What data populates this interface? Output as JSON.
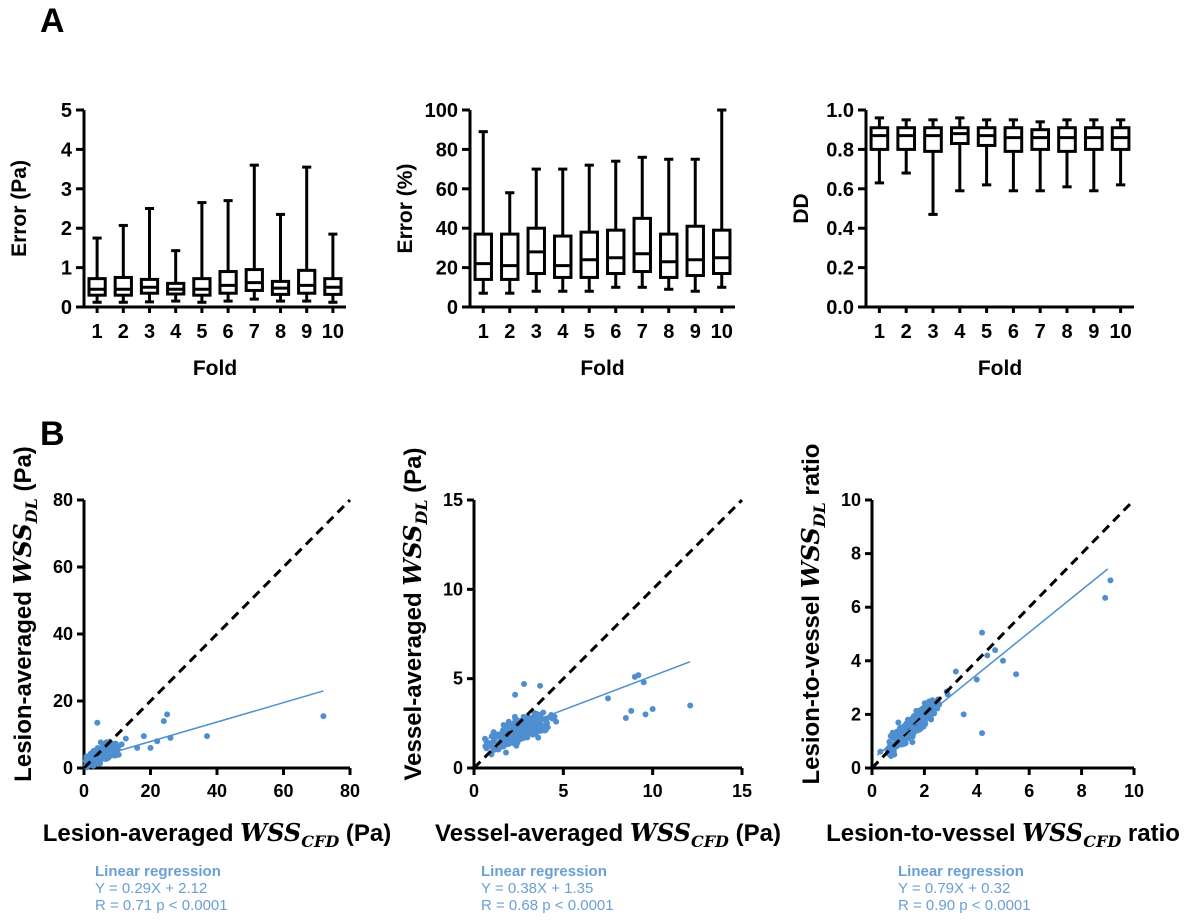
{
  "panels": {
    "a_label": "A",
    "b_label": "B"
  },
  "colors": {
    "axis": "#000000",
    "scatter": "#4f8fd0",
    "regression_text": "#6a9fd4"
  },
  "chart_data": [
    {
      "id": "a1",
      "type": "box",
      "ylabel": "Error (Pa)",
      "xlabel": "Fold",
      "categories": [
        "1",
        "2",
        "3",
        "4",
        "5",
        "6",
        "7",
        "8",
        "9",
        "10"
      ],
      "ylim": [
        0,
        5
      ],
      "yticks": [
        0,
        1,
        2,
        3,
        4,
        5
      ],
      "boxes": [
        {
          "min": 0.12,
          "q1": 0.3,
          "median": 0.45,
          "q3": 0.72,
          "max": 1.75
        },
        {
          "min": 0.12,
          "q1": 0.3,
          "median": 0.45,
          "q3": 0.75,
          "max": 2.07
        },
        {
          "min": 0.13,
          "q1": 0.35,
          "median": 0.5,
          "q3": 0.7,
          "max": 2.5
        },
        {
          "min": 0.15,
          "q1": 0.33,
          "median": 0.45,
          "q3": 0.6,
          "max": 1.43
        },
        {
          "min": 0.12,
          "q1": 0.3,
          "median": 0.45,
          "q3": 0.72,
          "max": 2.65
        },
        {
          "min": 0.15,
          "q1": 0.35,
          "median": 0.55,
          "q3": 0.9,
          "max": 2.7
        },
        {
          "min": 0.2,
          "q1": 0.42,
          "median": 0.62,
          "q3": 0.95,
          "max": 3.6
        },
        {
          "min": 0.15,
          "q1": 0.32,
          "median": 0.48,
          "q3": 0.65,
          "max": 2.35
        },
        {
          "min": 0.15,
          "q1": 0.35,
          "median": 0.55,
          "q3": 0.93,
          "max": 3.55
        },
        {
          "min": 0.12,
          "q1": 0.32,
          "median": 0.5,
          "q3": 0.72,
          "max": 1.85
        }
      ]
    },
    {
      "id": "a2",
      "type": "box",
      "ylabel": "Error (%)",
      "xlabel": "Fold",
      "categories": [
        "1",
        "2",
        "3",
        "4",
        "5",
        "6",
        "7",
        "8",
        "9",
        "10"
      ],
      "ylim": [
        0,
        100
      ],
      "yticks": [
        0,
        20,
        40,
        60,
        80,
        100
      ],
      "boxes": [
        {
          "min": 7,
          "q1": 14,
          "median": 22,
          "q3": 37,
          "max": 89
        },
        {
          "min": 7,
          "q1": 14,
          "median": 21,
          "q3": 37,
          "max": 58
        },
        {
          "min": 8,
          "q1": 17,
          "median": 28,
          "q3": 40,
          "max": 70
        },
        {
          "min": 8,
          "q1": 15,
          "median": 21,
          "q3": 36,
          "max": 70
        },
        {
          "min": 8,
          "q1": 15,
          "median": 24,
          "q3": 38,
          "max": 72
        },
        {
          "min": 10,
          "q1": 17,
          "median": 25,
          "q3": 39,
          "max": 74
        },
        {
          "min": 10,
          "q1": 18,
          "median": 27,
          "q3": 45,
          "max": 76
        },
        {
          "min": 9,
          "q1": 15,
          "median": 23,
          "q3": 37,
          "max": 75
        },
        {
          "min": 8,
          "q1": 16,
          "median": 24,
          "q3": 41,
          "max": 75
        },
        {
          "min": 10,
          "q1": 17,
          "median": 25,
          "q3": 39,
          "max": 100
        }
      ]
    },
    {
      "id": "a3",
      "type": "box",
      "ylabel": "DD",
      "xlabel": "Fold",
      "categories": [
        "1",
        "2",
        "3",
        "4",
        "5",
        "6",
        "7",
        "8",
        "9",
        "10"
      ],
      "ylim": [
        0,
        1.0
      ],
      "yticks": [
        "0.0",
        "0.2",
        "0.4",
        "0.6",
        "0.8",
        "1.0"
      ],
      "boxes": [
        {
          "min": 0.63,
          "q1": 0.8,
          "median": 0.87,
          "q3": 0.91,
          "max": 0.96
        },
        {
          "min": 0.68,
          "q1": 0.8,
          "median": 0.87,
          "q3": 0.91,
          "max": 0.95
        },
        {
          "min": 0.47,
          "q1": 0.79,
          "median": 0.87,
          "q3": 0.91,
          "max": 0.95
        },
        {
          "min": 0.59,
          "q1": 0.83,
          "median": 0.88,
          "q3": 0.91,
          "max": 0.96
        },
        {
          "min": 0.62,
          "q1": 0.82,
          "median": 0.87,
          "q3": 0.91,
          "max": 0.95
        },
        {
          "min": 0.59,
          "q1": 0.79,
          "median": 0.86,
          "q3": 0.91,
          "max": 0.95
        },
        {
          "min": 0.59,
          "q1": 0.8,
          "median": 0.86,
          "q3": 0.9,
          "max": 0.94
        },
        {
          "min": 0.61,
          "q1": 0.79,
          "median": 0.86,
          "q3": 0.91,
          "max": 0.95
        },
        {
          "min": 0.59,
          "q1": 0.8,
          "median": 0.86,
          "q3": 0.91,
          "max": 0.95
        },
        {
          "min": 0.62,
          "q1": 0.8,
          "median": 0.86,
          "q3": 0.91,
          "max": 0.95
        }
      ]
    },
    {
      "id": "b1",
      "type": "scatter",
      "ylabel_prefix": "Lesion-averaged ",
      "ylabel_var": "WSS",
      "ylabel_sub": "DL",
      "ylabel_suffix": " (Pa)",
      "xlabel_prefix": "Lesion-averaged ",
      "xlabel_var": "WSS",
      "xlabel_sub": "CFD",
      "xlabel_suffix": " (Pa)",
      "xlim": [
        0,
        80
      ],
      "ylim": [
        0,
        80
      ],
      "xticks": [
        0,
        20,
        40,
        60,
        80
      ],
      "yticks": [
        0,
        20,
        40,
        60,
        80
      ],
      "identity_line": true,
      "regression": {
        "slope": 0.29,
        "intercept": 2.12,
        "x_range": [
          1,
          72
        ]
      },
      "outliers": [
        [
          72,
          15.5
        ],
        [
          37,
          9.5
        ],
        [
          25,
          16
        ],
        [
          24,
          14
        ],
        [
          4,
          13.5
        ],
        [
          20,
          6
        ],
        [
          22,
          8
        ],
        [
          26,
          9
        ],
        [
          18,
          9.5
        ],
        [
          16,
          6
        ]
      ],
      "cluster": {
        "x_center": 5.5,
        "x_spread": 4,
        "y_at_center": 4.2,
        "y_slope": 0.45,
        "y_spread": 1.6,
        "count": 320,
        "x_min": 0.5,
        "x_max": 16
      },
      "regression_text": {
        "title": "Linear regression",
        "equation": "Y = 0.29X + 2.12",
        "stats": "R = 0.71 p < 0.0001"
      }
    },
    {
      "id": "b2",
      "type": "scatter",
      "ylabel_prefix": "Vessel-averaged ",
      "ylabel_var": "WSS",
      "ylabel_sub": "DL",
      "ylabel_suffix": " (Pa)",
      "xlabel_prefix": "Vessel-averaged ",
      "xlabel_var": "WSS",
      "xlabel_sub": "CFD",
      "xlabel_suffix": " (Pa)",
      "xlim": [
        0,
        15
      ],
      "ylim": [
        0,
        15
      ],
      "xticks": [
        0,
        5,
        10,
        15
      ],
      "yticks": [
        0,
        5,
        10,
        15
      ],
      "identity_line": true,
      "regression": {
        "slope": 0.38,
        "intercept": 1.35,
        "x_range": [
          0.8,
          12.1
        ]
      },
      "outliers": [
        [
          12.1,
          3.5
        ],
        [
          9.5,
          4.8
        ],
        [
          9.0,
          5.1
        ],
        [
          9.2,
          5.2
        ],
        [
          9.6,
          3.0
        ],
        [
          8.8,
          3.2
        ],
        [
          7.5,
          3.9
        ],
        [
          2.8,
          4.7
        ],
        [
          2.3,
          4.1
        ],
        [
          3.7,
          4.6
        ],
        [
          8.5,
          2.8
        ],
        [
          10.0,
          3.3
        ]
      ],
      "cluster": {
        "x_center": 2.6,
        "x_spread": 1.3,
        "y_at_center": 2.1,
        "y_slope": 0.4,
        "y_spread": 0.45,
        "count": 520,
        "x_min": 0.6,
        "x_max": 8
      },
      "regression_text": {
        "title": "Linear regression",
        "equation": "Y = 0.38X + 1.35",
        "stats": "R = 0.68 p < 0.0001"
      }
    },
    {
      "id": "b3",
      "type": "scatter",
      "ylabel_prefix": "Lesion-to-vessel  ",
      "ylabel_var": "WSS",
      "ylabel_sub": "DL",
      "ylabel_suffix": " ratio",
      "xlabel_prefix": "Lesion-to-vessel ",
      "xlabel_var": "WSS",
      "xlabel_sub": "CFD",
      "xlabel_suffix": " ratio",
      "xlim": [
        0,
        10
      ],
      "ylim": [
        0,
        10
      ],
      "xticks": [
        0,
        2,
        4,
        6,
        8,
        10
      ],
      "yticks": [
        0,
        2,
        4,
        6,
        8,
        10
      ],
      "identity_line": true,
      "regression": {
        "slope": 0.79,
        "intercept": 0.32,
        "x_range": [
          0.2,
          9.0
        ]
      },
      "outliers": [
        [
          9.1,
          7.0
        ],
        [
          8.9,
          6.35
        ],
        [
          4.2,
          5.05
        ],
        [
          5.5,
          3.5
        ],
        [
          4.7,
          4.4
        ],
        [
          4.2,
          1.3
        ],
        [
          3.5,
          2.0
        ],
        [
          3.2,
          3.6
        ],
        [
          4.0,
          3.3
        ],
        [
          4.4,
          4.2
        ],
        [
          5.0,
          4.0
        ]
      ],
      "cluster": {
        "x_center": 1.6,
        "x_spread": 0.7,
        "y_at_center": 1.6,
        "y_slope": 0.9,
        "y_spread": 0.3,
        "count": 420,
        "x_min": 0.3,
        "x_max": 3.6
      },
      "regression_text": {
        "title": "Linear regression",
        "equation": "Y = 0.79X + 0.32",
        "stats": "R = 0.90 p < 0.0001"
      }
    }
  ]
}
